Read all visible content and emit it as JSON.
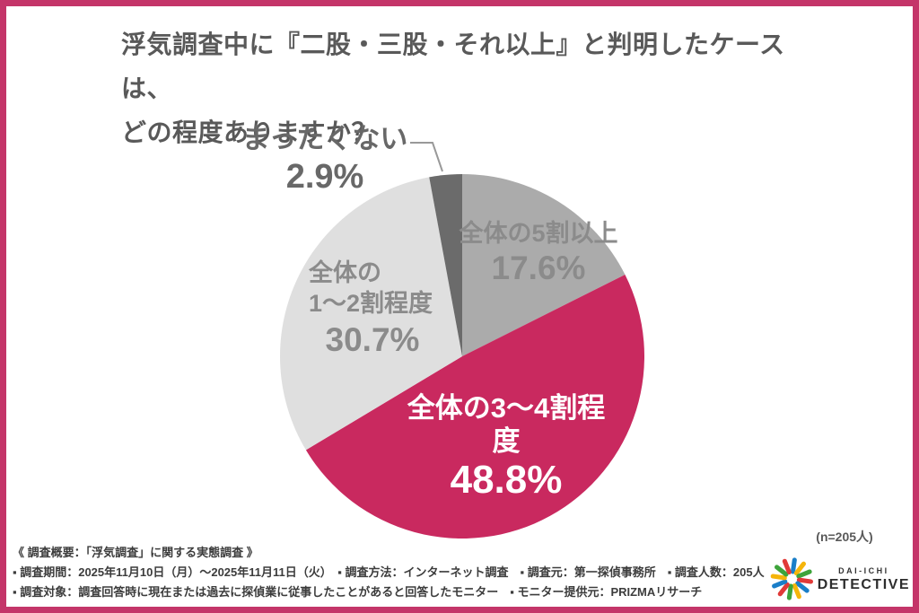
{
  "page": {
    "frame_color": "#c43569",
    "background": "#ffffff"
  },
  "title": {
    "line1": "浮気調査中に『二股・三股・それ以上』と判明したケースは、",
    "line2": "どの程度ありますか？"
  },
  "chart_data": {
    "type": "pie",
    "title": "浮気調査中に『二股・三股・それ以上』と判明したケースは、どの程度ありますか？",
    "unit": "%",
    "sample_size_label": "(n=205人)",
    "start_angle_deg": 0,
    "direction": "clockwise",
    "slices": [
      {
        "label": "全体の5割以上",
        "value": 17.6,
        "color": "#ababab",
        "text_color": "#8b8b8b"
      },
      {
        "label": "全体の3〜4割程度",
        "value": 48.8,
        "color": "#c9295f",
        "text_color": "#ffffff"
      },
      {
        "label": "全体の1〜2割程度",
        "value": 30.7,
        "color": "#dfdfdf",
        "text_color": "#8b8b8b"
      },
      {
        "label": "まったくない",
        "value": 2.9,
        "color": "#6b6b6b",
        "text_color": "#686868"
      }
    ]
  },
  "pie_labels": {
    "five_plus": {
      "name": "全体の5割以上",
      "pct": "17.6%"
    },
    "three_four": {
      "name": "全体の3〜4割程度",
      "pct": "48.8%"
    },
    "one_two": {
      "line1": "全体の",
      "line2": "1〜2割程度",
      "pct": "30.7%"
    },
    "none": {
      "name": "まったくない",
      "pct": "2.9%"
    }
  },
  "annotations": {
    "n_label": "(n=205人)"
  },
  "footer": {
    "heading": "《 調査概要：「浮気調査」に関する実態調査 》",
    "line2": "▪ 調査期間：2025年11月10日（月）〜2025年11月11日（火）　▪ 調査方法：インターネット調査　▪ 調査元：第一探偵事務所　▪ 調査人数：205人",
    "line3": "▪ 調査対象：調査回答時に現在または過去に探偵業に従事したことがあると回答したモニター　▪ モニター提供元：PRIZMAリサーチ"
  },
  "logo": {
    "brand_top": "DAI-ICHI",
    "brand_bottom": "DETECTIVE",
    "starburst_colors": [
      "#1a7ec8",
      "#f5b50a",
      "#3ea43b",
      "#e13a38"
    ]
  }
}
